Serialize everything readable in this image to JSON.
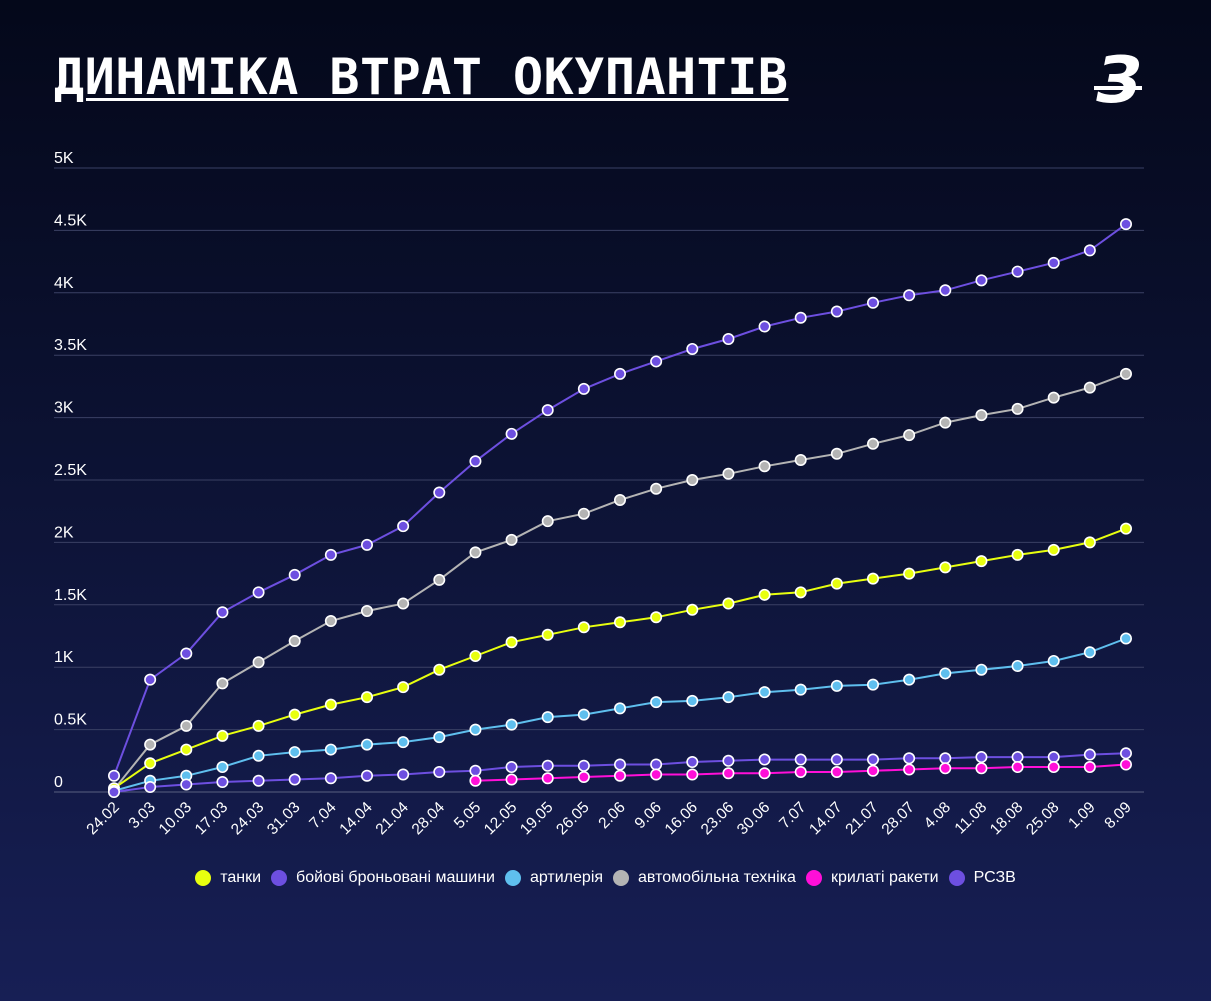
{
  "header": {
    "title": "ДИНАМІКА ВТРАТ ОКУПАНТІВ",
    "logo_glyph": "З"
  },
  "chart_data": {
    "type": "line",
    "title": "ДИНАМІКА ВТРАТ ОКУПАНТІВ",
    "categories": [
      "24.02",
      "3.03",
      "10.03",
      "17.03",
      "24.03",
      "31.03",
      "7.04",
      "14.04",
      "21.04",
      "28.04",
      "5.05",
      "12.05",
      "19.05",
      "26.05",
      "2.06",
      "9.06",
      "16.06",
      "23.06",
      "30.06",
      "7.07",
      "14.07",
      "21.07",
      "28.07",
      "4.08",
      "11.08",
      "18.08",
      "25.08",
      "1.09",
      "8.09"
    ],
    "ylim": [
      0,
      5000
    ],
    "yticks": [
      {
        "value": 0,
        "label": "0"
      },
      {
        "value": 500,
        "label": "0.5K"
      },
      {
        "value": 1000,
        "label": "1K"
      },
      {
        "value": 1500,
        "label": "1.5K"
      },
      {
        "value": 2000,
        "label": "2K"
      },
      {
        "value": 2500,
        "label": "2.5K"
      },
      {
        "value": 3000,
        "label": "3K"
      },
      {
        "value": 3500,
        "label": "3.5K"
      },
      {
        "value": 4000,
        "label": "4K"
      },
      {
        "value": 4500,
        "label": "4.5K"
      },
      {
        "value": 5000,
        "label": "5K"
      }
    ],
    "grid": true,
    "legend_position": "bottom",
    "series": [
      {
        "name": "бойові броньовані машини",
        "color": "#6d4fe0",
        "values": [
          130,
          900,
          1110,
          1440,
          1600,
          1740,
          1900,
          1980,
          2130,
          2400,
          2650,
          2870,
          3060,
          3230,
          3350,
          3450,
          3550,
          3630,
          3730,
          3800,
          3850,
          3920,
          3980,
          4020,
          4100,
          4170,
          4240,
          4340,
          4550
        ]
      },
      {
        "name": "автомобільна техніка",
        "color": "#b4b4b4",
        "values": [
          20,
          380,
          530,
          870,
          1040,
          1210,
          1370,
          1450,
          1510,
          1700,
          1920,
          2020,
          2170,
          2230,
          2340,
          2430,
          2500,
          2550,
          2610,
          2660,
          2710,
          2790,
          2860,
          2960,
          3020,
          3070,
          3160,
          3240,
          3350
        ]
      },
      {
        "name": "танки",
        "color": "#e8ff0f",
        "values": [
          30,
          230,
          340,
          450,
          530,
          620,
          700,
          760,
          840,
          980,
          1090,
          1200,
          1260,
          1320,
          1360,
          1400,
          1460,
          1510,
          1580,
          1600,
          1670,
          1710,
          1750,
          1800,
          1850,
          1900,
          1940,
          2000,
          2110
        ]
      },
      {
        "name": "артилерія",
        "color": "#5fbfee",
        "values": [
          10,
          90,
          130,
          200,
          290,
          320,
          340,
          380,
          400,
          440,
          500,
          540,
          600,
          620,
          670,
          720,
          730,
          760,
          800,
          820,
          850,
          860,
          900,
          950,
          980,
          1010,
          1050,
          1120,
          1230
        ]
      },
      {
        "name": "РСЗВ",
        "color": "#6d4fe0",
        "values": [
          0,
          40,
          60,
          80,
          90,
          100,
          110,
          130,
          140,
          160,
          170,
          200,
          210,
          210,
          220,
          220,
          240,
          250,
          260,
          260,
          260,
          260,
          270,
          270,
          280,
          280,
          280,
          300,
          310
        ]
      },
      {
        "name": "крилаті ракети",
        "color": "#ff0fd8",
        "values": [
          null,
          null,
          null,
          null,
          null,
          null,
          null,
          null,
          null,
          null,
          90,
          100,
          110,
          120,
          130,
          140,
          140,
          150,
          150,
          160,
          160,
          170,
          180,
          190,
          190,
          200,
          200,
          200,
          220
        ]
      }
    ]
  },
  "legend": [
    {
      "label": "танки",
      "color": "#e8ff0f"
    },
    {
      "label": "бойові броньовані машини",
      "color": "#6d4fe0"
    },
    {
      "label": "артилерія",
      "color": "#5fbfee"
    },
    {
      "label": "автомобільна техніка",
      "color": "#b4b4b4"
    },
    {
      "label": "крилаті ракети",
      "color": "#ff0fd8"
    },
    {
      "label": "РСЗВ",
      "color": "#6d4fe0"
    }
  ]
}
